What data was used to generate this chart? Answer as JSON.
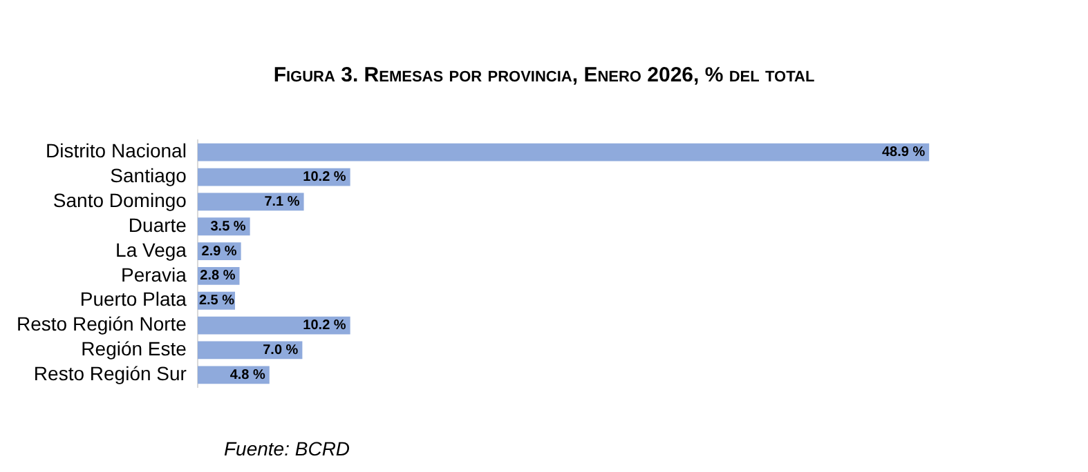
{
  "chart_data": {
    "type": "bar",
    "orientation": "horizontal",
    "title": "Figura 3. Remesas por provincia, Enero 2026, % del total",
    "categories": [
      "Distrito Nacional",
      "Santiago",
      "Santo Domingo",
      "Duarte",
      "La Vega",
      "Peravia",
      "Puerto Plata",
      "Resto Región Norte",
      "Región Este",
      "Resto Región Sur"
    ],
    "values": [
      48.9,
      10.2,
      7.1,
      3.5,
      2.9,
      2.8,
      2.5,
      10.2,
      7.0,
      4.8
    ],
    "value_labels": [
      "48.9 %",
      "10.2 %",
      "7.1 %",
      "3.5 %",
      "2.9 %",
      "2.8 %",
      "2.5 %",
      "10.2 %",
      "7.0 %",
      "4.8 %"
    ],
    "color": "#8faadc",
    "grid": false,
    "legend": false,
    "annotations": [
      "Fuente: BCRD"
    ]
  }
}
